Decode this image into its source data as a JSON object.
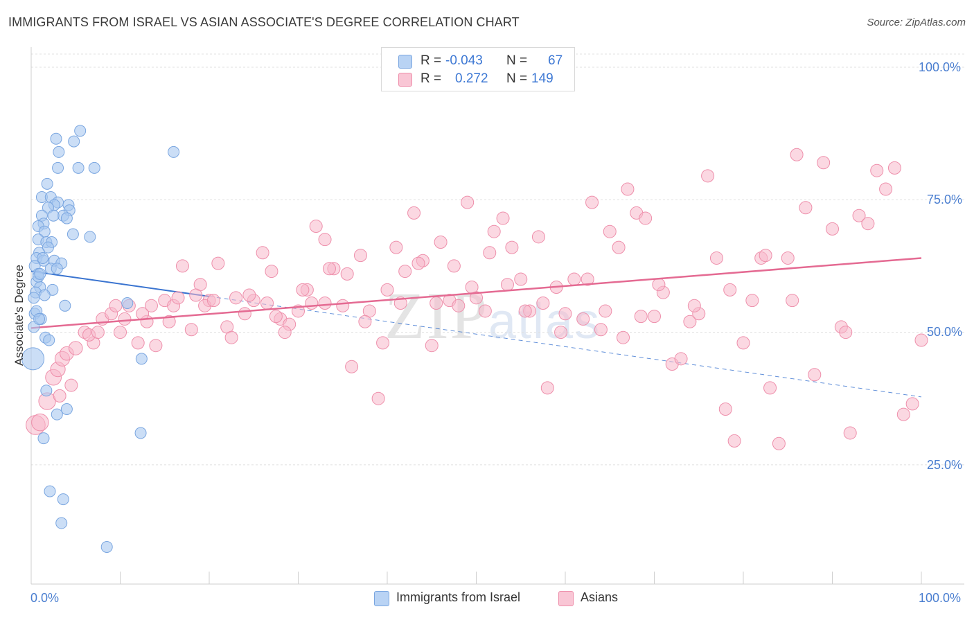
{
  "title": "IMMIGRANTS FROM ISRAEL VS ASIAN ASSOCIATE'S DEGREE CORRELATION CHART",
  "source": "Source: ZipAtlas.com",
  "watermark": {
    "part1": "ZIP",
    "part2": "atlas"
  },
  "legend_top": {
    "row1": {
      "r_label": "R =",
      "r_value": "-0.043",
      "n_label": "N =",
      "n_value": "67"
    },
    "row2": {
      "r_label": "R =",
      "r_value": "0.272",
      "n_label": "N =",
      "n_value": "149"
    }
  },
  "legend_bottom": {
    "series1": "Immigrants from Israel",
    "series2": "Asians"
  },
  "colors": {
    "israel_fill": "#a8c8f0",
    "israel_stroke": "#7aa6e0",
    "israel_line": "#3a74d0",
    "asian_fill": "#f7b8cb",
    "asian_stroke": "#ee8fab",
    "asian_line": "#e46a92",
    "grid": "#e0e0e0",
    "tick_text": "#4a7ed0"
  },
  "chart_data": {
    "type": "scatter",
    "title": "IMMIGRANTS FROM ISRAEL VS ASIAN ASSOCIATE'S DEGREE CORRELATION CHART",
    "xlabel": "",
    "ylabel": "Associate's Degree",
    "xlim": [
      0,
      100
    ],
    "ylim": [
      0,
      105
    ],
    "x_tick_labels": [
      "0.0%",
      "100.0%"
    ],
    "y_ticks": [
      25,
      50,
      75,
      100
    ],
    "y_tick_labels": [
      "25.0%",
      "50.0%",
      "75.0%",
      "100.0%"
    ],
    "legend_position": "top-center",
    "series": [
      {
        "name": "Immigrants from Israel",
        "R": -0.043,
        "N": 67,
        "trend": {
          "x0": 0,
          "y0": 61.5,
          "x1": 100,
          "y1": 37.8,
          "solid_until_x": 20
        },
        "points": [
          [
            5.5,
            88
          ],
          [
            2.8,
            86.5
          ],
          [
            4.8,
            86
          ],
          [
            3.1,
            84
          ],
          [
            16,
            84
          ],
          [
            3,
            81
          ],
          [
            5.3,
            81
          ],
          [
            7.1,
            81
          ],
          [
            1.8,
            78
          ],
          [
            1.2,
            75.5
          ],
          [
            2.2,
            75.5
          ],
          [
            3,
            74.5
          ],
          [
            2.6,
            74
          ],
          [
            4.2,
            74
          ],
          [
            1.9,
            73.5
          ],
          [
            4.3,
            73
          ],
          [
            1.2,
            72
          ],
          [
            3.6,
            72
          ],
          [
            4,
            71.5
          ],
          [
            1.4,
            70.5
          ],
          [
            0.8,
            70
          ],
          [
            1.5,
            69
          ],
          [
            4.7,
            68.5
          ],
          [
            6.6,
            68
          ],
          [
            0.8,
            67.5
          ],
          [
            1.7,
            67
          ],
          [
            2.3,
            67
          ],
          [
            1.9,
            66
          ],
          [
            0.9,
            65
          ],
          [
            0.6,
            64
          ],
          [
            1.4,
            63.5
          ],
          [
            2.6,
            63.5
          ],
          [
            3.4,
            63
          ],
          [
            0.4,
            62.5
          ],
          [
            2.2,
            62
          ],
          [
            2.9,
            62
          ],
          [
            0.8,
            61
          ],
          [
            0.6,
            59.5
          ],
          [
            1,
            58.5
          ],
          [
            2.4,
            58
          ],
          [
            0.5,
            57.5
          ],
          [
            1.5,
            57
          ],
          [
            0.3,
            56.5
          ],
          [
            3.8,
            55
          ],
          [
            10.8,
            55.5
          ],
          [
            0.4,
            53.5
          ],
          [
            1.1,
            52.5
          ],
          [
            0.3,
            51
          ],
          [
            1.6,
            49
          ],
          [
            2,
            48.5
          ],
          [
            0.2,
            45
          ],
          [
            12.4,
            45
          ],
          [
            1.7,
            39
          ],
          [
            4,
            35.5
          ],
          [
            2.9,
            34.5
          ],
          [
            12.3,
            31
          ],
          [
            1.4,
            30
          ],
          [
            2.1,
            20
          ],
          [
            3.6,
            18.5
          ],
          [
            3.4,
            14
          ],
          [
            8.5,
            9.5
          ],
          [
            0.6,
            54
          ],
          [
            0.8,
            60.5
          ],
          [
            1,
            61
          ],
          [
            1.3,
            64
          ],
          [
            2.5,
            72
          ],
          [
            0.9,
            52.5
          ]
        ],
        "sizes": [
          1,
          1,
          1,
          1,
          1,
          1,
          1,
          1,
          1,
          1,
          1,
          1,
          1,
          1,
          1,
          1,
          1,
          1,
          1,
          1,
          1,
          1,
          1,
          1,
          1,
          1,
          1,
          1,
          1,
          1,
          1,
          1,
          1,
          1,
          1,
          1,
          1,
          1,
          1,
          1,
          1,
          1,
          1,
          1,
          1,
          1,
          1,
          1,
          1,
          1,
          2,
          1,
          1,
          1,
          1,
          1,
          1,
          1,
          1,
          1,
          1,
          1,
          1,
          1,
          1,
          1,
          1
        ]
      },
      {
        "name": "Asians",
        "R": 0.272,
        "N": 149,
        "trend": {
          "x0": 0,
          "y0": 50.8,
          "x1": 100,
          "y1": 64
        }
      }
    ]
  }
}
